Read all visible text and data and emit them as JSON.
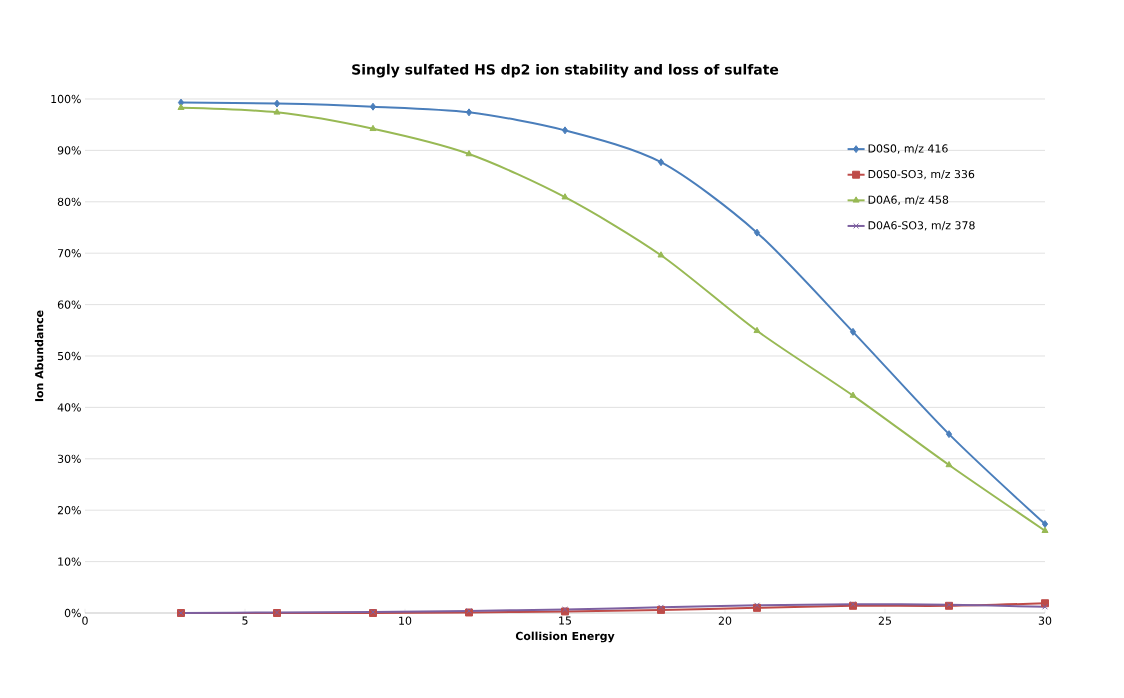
{
  "chart_data": {
    "type": "line",
    "title": "Singly sulfated HS dp2 ion stability and loss of sulfate",
    "xlabel": "Collision Energy",
    "ylabel": "Ion  Abundance",
    "x": [
      3,
      6,
      9,
      12,
      15,
      18,
      21,
      24,
      27,
      30
    ],
    "series": [
      {
        "name": "D0S0, m/z 416",
        "color": "#4a7ebb",
        "marker": "diamond",
        "values": [
          99.3,
          99.1,
          98.5,
          97.4,
          93.9,
          87.7,
          74.0,
          54.7,
          34.8,
          17.3
        ]
      },
      {
        "name": "D0S0-SO3, m/z 336",
        "color": "#be4b48",
        "marker": "square",
        "values": [
          0,
          0,
          0,
          0.1,
          0.3,
          0.6,
          1.0,
          1.4,
          1.4,
          1.9
        ]
      },
      {
        "name": "D0A6, m/z 458",
        "color": "#98b954",
        "marker": "triangle",
        "values": [
          98.3,
          97.4,
          94.2,
          89.3,
          80.9,
          69.6,
          54.9,
          42.3,
          28.8,
          16.0
        ]
      },
      {
        "name": "D0A6-SO3, m/z 378",
        "color": "#7d60a0",
        "marker": "cross",
        "values": [
          0,
          0.1,
          0.2,
          0.4,
          0.7,
          1.1,
          1.5,
          1.7,
          1.6,
          1.2
        ]
      }
    ],
    "xlim": [
      0,
      30
    ],
    "xticks": [
      0,
      5,
      10,
      15,
      20,
      25,
      30
    ],
    "ylim": [
      0,
      100
    ],
    "yticks": [
      {
        "value": 0,
        "label": "0%"
      },
      {
        "value": 10,
        "label": "10%"
      },
      {
        "value": 20,
        "label": "20%"
      },
      {
        "value": 30,
        "label": "30%"
      },
      {
        "value": 40,
        "label": "40%"
      },
      {
        "value": 50,
        "label": "50%"
      },
      {
        "value": 60,
        "label": "60%"
      },
      {
        "value": 70,
        "label": "70%"
      },
      {
        "value": 80,
        "label": "80%"
      },
      {
        "value": 90,
        "label": "90%"
      },
      {
        "value": 100,
        "label": "100%"
      }
    ],
    "grid": "y",
    "legend": "top right",
    "line_style": "solid"
  }
}
